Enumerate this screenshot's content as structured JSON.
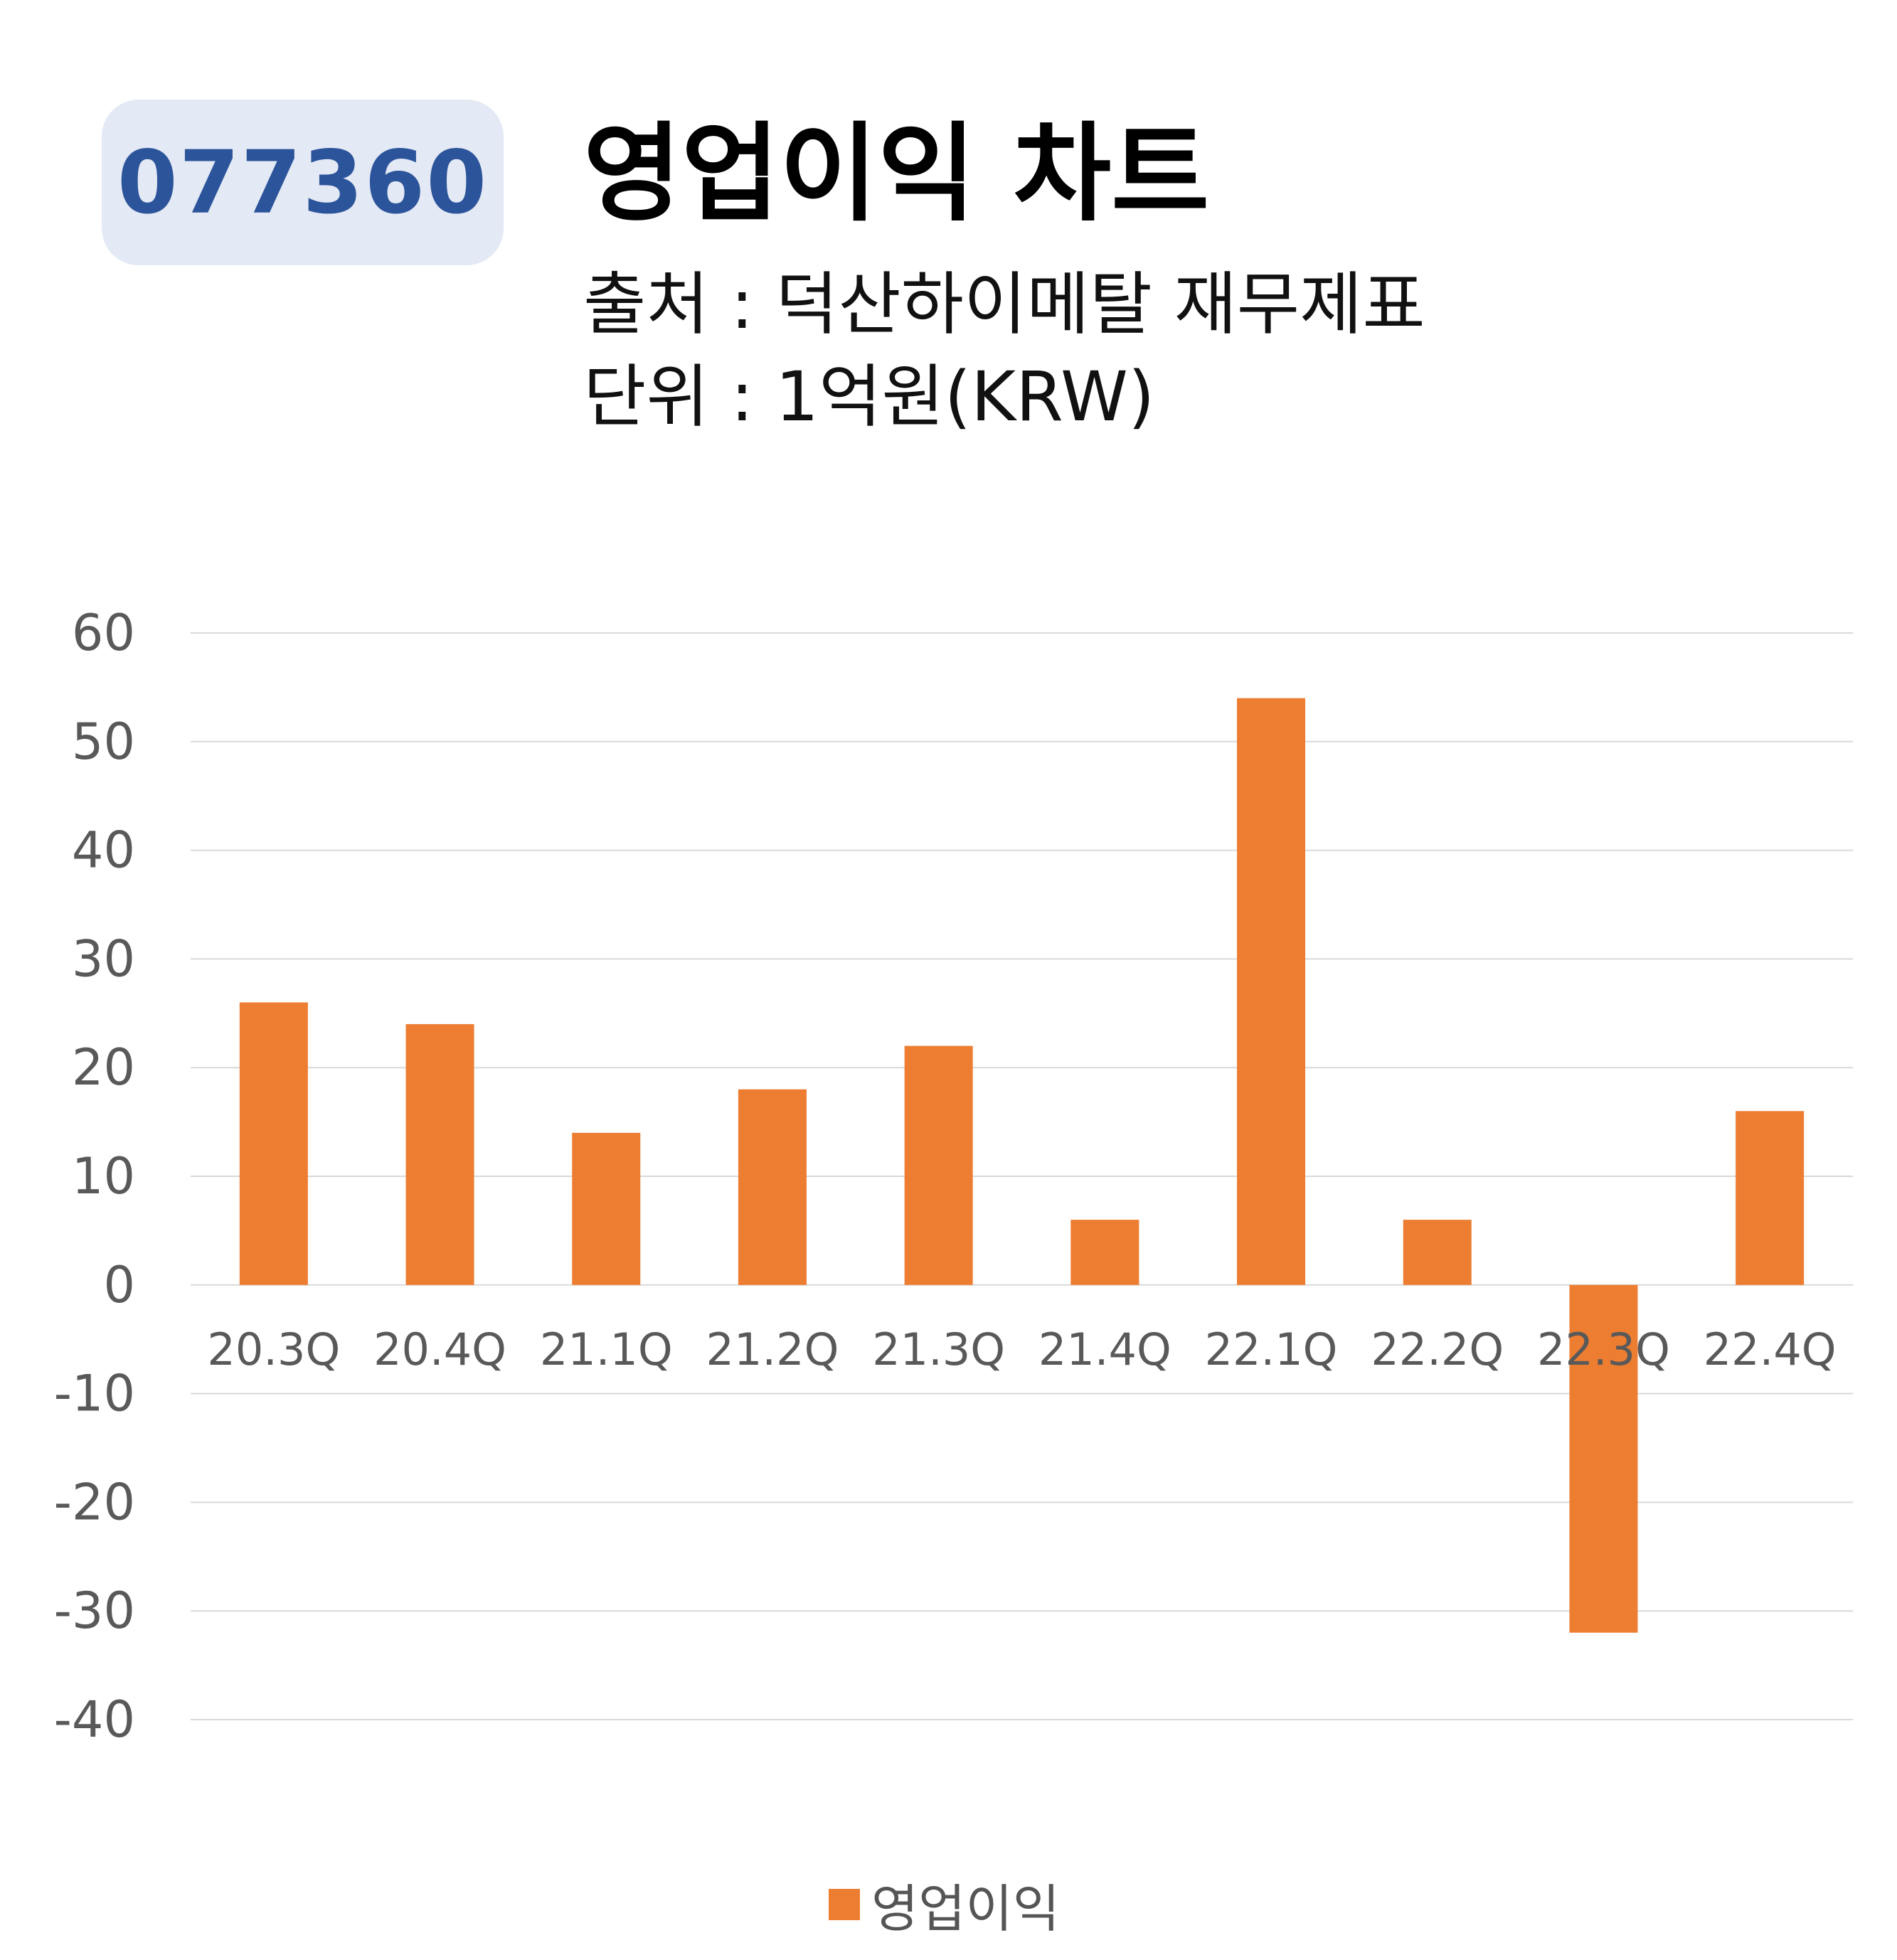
{
  "header": {
    "ticker": "077360",
    "title": "영업이익 차트",
    "source": "출처 : 덕산하이메탈 재무제표",
    "unit": "단위 : 1억원(KRW)"
  },
  "colors": {
    "bar": "#ed7d31",
    "badge_bg": "#e3e9f5",
    "badge_text": "#2c549b",
    "grid": "#d9d9d9",
    "axis_text": "#595959"
  },
  "chart_data": {
    "type": "bar",
    "categories": [
      "20.3Q",
      "20.4Q",
      "21.1Q",
      "21.2Q",
      "21.3Q",
      "21.4Q",
      "22.1Q",
      "22.2Q",
      "22.3Q",
      "22.4Q"
    ],
    "series": [
      {
        "name": "영업이익",
        "values": [
          26,
          24,
          14,
          18,
          22,
          6,
          54,
          6,
          -32,
          16
        ]
      }
    ],
    "yticks": [
      60,
      50,
      40,
      30,
      20,
      10,
      0,
      -10,
      -20,
      -30,
      -40
    ],
    "ylim": [
      -40,
      60
    ],
    "grid": true,
    "legend": "bottom-center"
  }
}
